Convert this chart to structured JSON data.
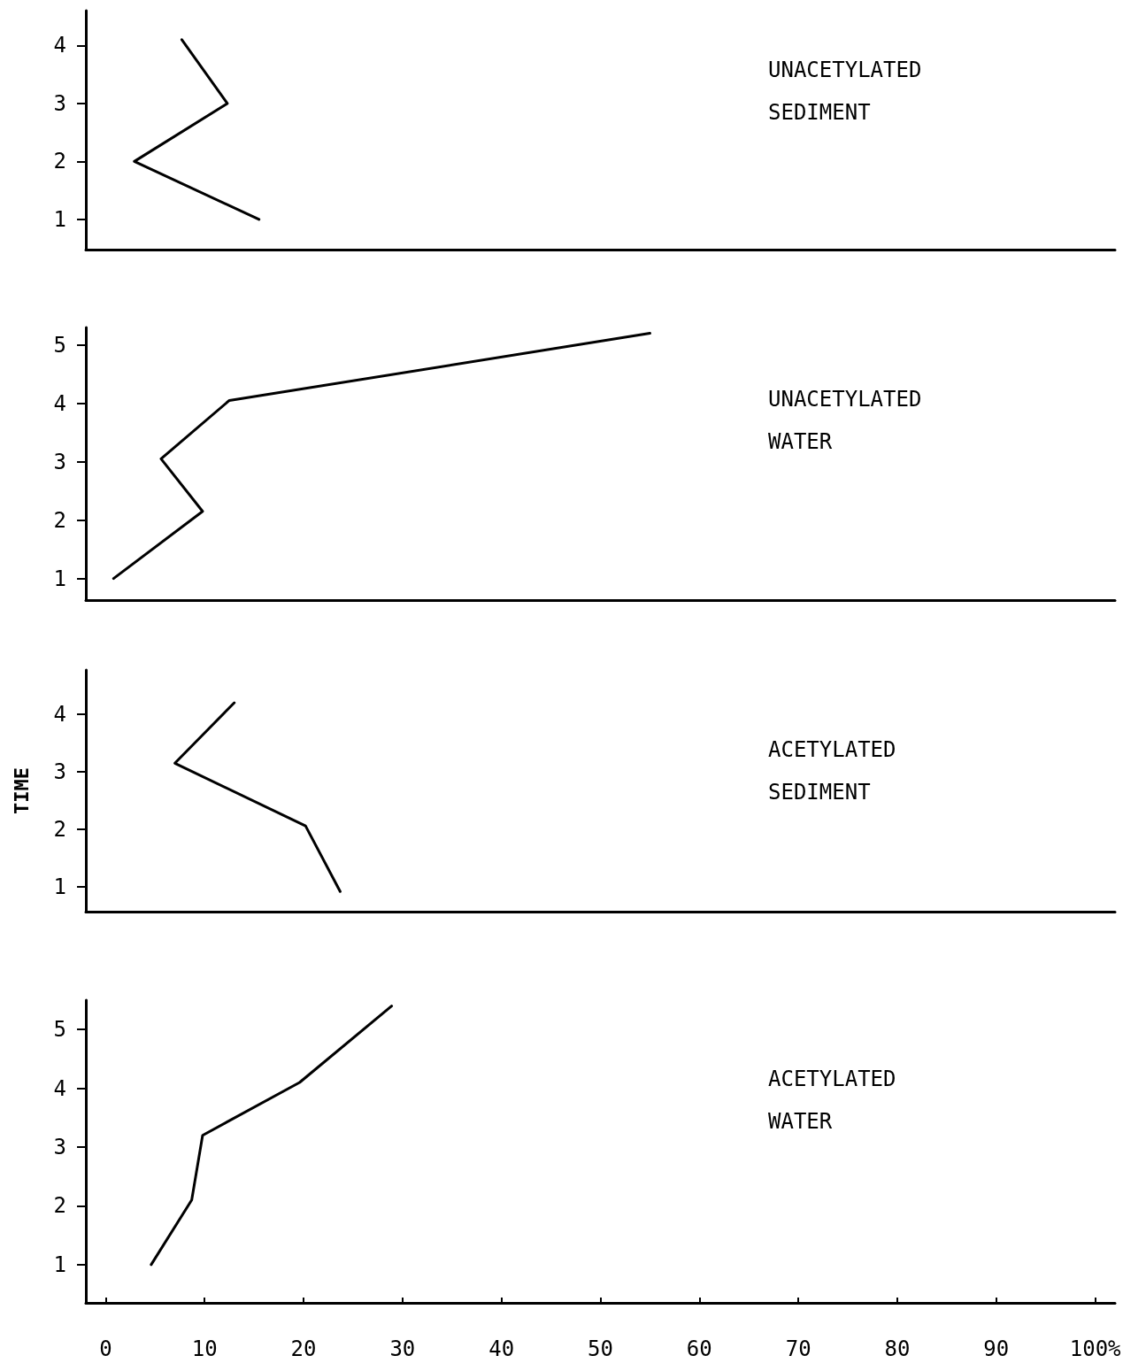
{
  "chart_data": [
    {
      "type": "line",
      "title": "UNACETYLATED\nSEDIMENT",
      "x": [
        7.7,
        12.3,
        2.9,
        15.5
      ],
      "values": [
        4.1,
        3,
        2,
        1
      ],
      "color": "#000000",
      "xlim": [
        -2,
        102
      ],
      "ylim": [
        0.48,
        4.6
      ],
      "yticks": [
        1,
        2,
        3,
        4
      ],
      "tick_labels": "y",
      "line_style": "solid",
      "grid": false
    },
    {
      "type": "line",
      "title": "UNACETYLATED\nWATER",
      "x": [
        0.8,
        9.8,
        5.6,
        12.5,
        55
      ],
      "values": [
        1,
        2.15,
        3.05,
        4.05,
        5.2
      ],
      "color": "#000000",
      "xlim": [
        -2,
        102
      ],
      "ylim": [
        0.63,
        5.3
      ],
      "yticks": [
        1,
        2,
        3,
        4,
        5
      ],
      "tick_labels": "y",
      "line_style": "solid",
      "grid": false
    },
    {
      "type": "line",
      "title": "ACETYLATED\nSEDIMENT",
      "ylabel": "TIME",
      "x": [
        13,
        7,
        20.2,
        23.7
      ],
      "values": [
        4.2,
        3.15,
        2.06,
        0.92
      ],
      "color": "#000000",
      "xlim": [
        -2,
        102
      ],
      "ylim": [
        0.57,
        4.77
      ],
      "yticks": [
        1,
        2,
        3,
        4
      ],
      "tick_labels": "y",
      "line_style": "solid",
      "grid": false
    },
    {
      "type": "line",
      "title": "ACETYLATED\nWATER",
      "x": [
        4.6,
        8.7,
        9.8,
        19.6,
        28.9
      ],
      "values": [
        1,
        2.1,
        3.2,
        4.1,
        5.4
      ],
      "color": "#000000",
      "xlim": [
        -2,
        102
      ],
      "ylim": [
        0.35,
        5.5
      ],
      "yticks": [
        1,
        2,
        3,
        4,
        5
      ],
      "xticks": [
        0,
        10,
        20,
        30,
        40,
        50,
        60,
        70,
        80,
        90,
        {
          "value": 100,
          "label": "100%"
        }
      ],
      "line_style": "solid",
      "grid": false
    }
  ]
}
